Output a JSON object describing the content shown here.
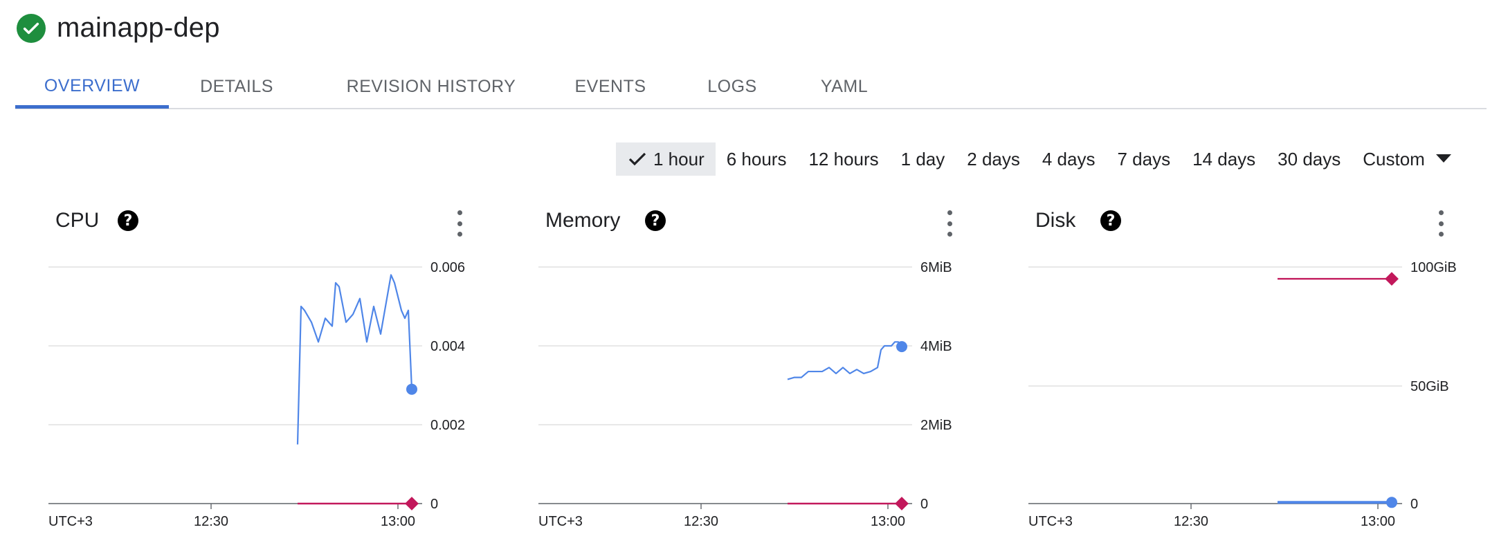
{
  "header": {
    "title": "mainapp-dep",
    "status_icon": "check-circle-icon",
    "status_color": "#1e8e3e"
  },
  "tabs": [
    {
      "label": "OVERVIEW",
      "active": true
    },
    {
      "label": "DETAILS",
      "active": false
    },
    {
      "label": "REVISION HISTORY",
      "active": false
    },
    {
      "label": "EVENTS",
      "active": false
    },
    {
      "label": "LOGS",
      "active": false
    },
    {
      "label": "YAML",
      "active": false
    }
  ],
  "time_range": {
    "selected": "1 hour",
    "options": [
      "1 hour",
      "6 hours",
      "12 hours",
      "1 day",
      "2 days",
      "4 days",
      "7 days",
      "14 days",
      "30 days",
      "Custom"
    ]
  },
  "colors": {
    "accent": "#3c6ecd",
    "usage_line": "#4f86e8",
    "limit_line": "#c2185b",
    "grid": "#e0e0e0"
  },
  "chart_data": [
    {
      "type": "line",
      "title": "CPU",
      "xlabel": "",
      "ylabel": "",
      "x_tick_labels": [
        "UTC+3",
        "12:30",
        "13:00"
      ],
      "y_tick_labels": [
        "0.006",
        "0.004",
        "0.002",
        "0"
      ],
      "ylim": [
        0,
        0.006
      ],
      "grid": true,
      "series": [
        {
          "x": [
            "12:46",
            "12:46.5",
            "12:47",
            "12:48",
            "12:49",
            "12:50",
            "12:51",
            "12:51.5",
            "12:52",
            "12:53",
            "12:53.5",
            "12:54",
            "12:55",
            "12:56",
            "12:57",
            "12:58",
            "12:59",
            "12:59.5",
            "13:00",
            "13:01",
            "13:01.5",
            "13:02",
            "13:02.5"
          ],
          "values": [
            0.0015,
            0.005,
            0.0049,
            0.0046,
            0.0041,
            0.0047,
            0.0045,
            0.0056,
            0.0055,
            0.0046,
            0.0047,
            0.0048,
            0.0052,
            0.0041,
            0.005,
            0.0043,
            0.0053,
            0.0058,
            0.0056,
            0.0049,
            0.0047,
            0.0049,
            0.0029
          ],
          "color": "#4f86e8"
        },
        {
          "x": [
            "12:46",
            "13:02.5"
          ],
          "values": [
            0,
            0
          ],
          "color": "#c2185b"
        }
      ]
    },
    {
      "type": "line",
      "title": "Memory",
      "xlabel": "",
      "ylabel": "",
      "x_tick_labels": [
        "UTC+3",
        "12:30",
        "13:00"
      ],
      "y_tick_labels": [
        "6MiB",
        "4MiB",
        "2MiB",
        "0"
      ],
      "ylim": [
        0,
        6
      ],
      "grid": true,
      "series": [
        {
          "x": [
            "12:46",
            "12:47",
            "12:48",
            "12:49",
            "12:50",
            "12:51",
            "12:52",
            "12:53",
            "12:54",
            "12:55",
            "12:56",
            "12:57",
            "12:58",
            "12:59",
            "12:59.5",
            "13:00",
            "13:01",
            "13:01.5",
            "13:02",
            "13:02.5"
          ],
          "values": [
            3.15,
            3.2,
            3.2,
            3.35,
            3.35,
            3.35,
            3.45,
            3.3,
            3.45,
            3.3,
            3.4,
            3.3,
            3.35,
            3.45,
            3.9,
            4.0,
            4.0,
            4.1,
            4.1,
            3.98
          ],
          "color": "#4f86e8"
        },
        {
          "x": [
            "12:46",
            "13:02.5"
          ],
          "values": [
            0,
            0
          ],
          "color": "#c2185b"
        }
      ]
    },
    {
      "type": "line",
      "title": "Disk",
      "xlabel": "",
      "ylabel": "",
      "x_tick_labels": [
        "UTC+3",
        "12:30",
        "13:00"
      ],
      "y_tick_labels": [
        "100GiB",
        "50GiB",
        "0"
      ],
      "ylim": [
        0,
        100
      ],
      "grid": true,
      "series": [
        {
          "x": [
            "12:46",
            "13:02.5"
          ],
          "values": [
            95,
            95
          ],
          "color": "#c2185b"
        },
        {
          "x": [
            "12:46",
            "13:02.5"
          ],
          "values": [
            0.5,
            0.5
          ],
          "color": "#4f86e8"
        }
      ]
    }
  ]
}
